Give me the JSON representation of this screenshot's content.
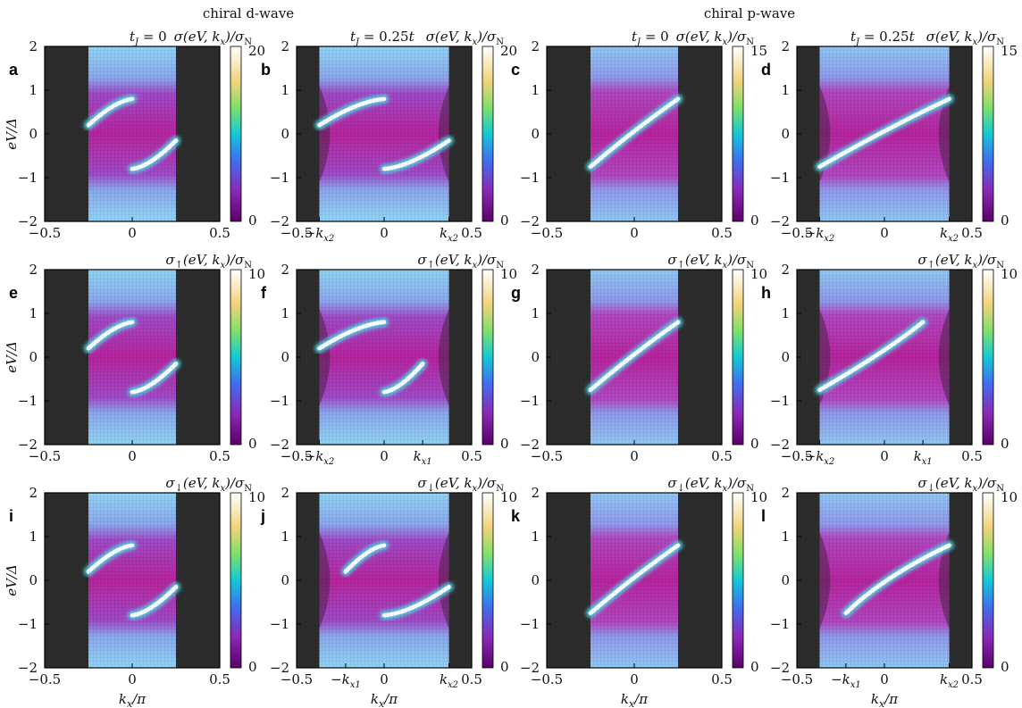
{
  "figure": {
    "header_d": "chiral d-wave",
    "header_p": "chiral p-wave"
  },
  "chart_data": [
    {
      "id": "a",
      "type": "heatmap",
      "panel_label": "a",
      "title_left": "t_J = 0",
      "title_right": "σ(eV, k_x)/σ_N",
      "cbar_max": 20,
      "ylabel": "eV/Δ",
      "xlim": [
        -0.5,
        0.5
      ],
      "ylim": [
        -2,
        2
      ],
      "x_ticks": [
        "-0.5",
        "0",
        "0.5"
      ],
      "y_ticks": [
        "-2",
        "-1",
        "0",
        "1",
        "2"
      ],
      "pairing": "d",
      "metal_edge": 0.25,
      "band_inner": 0.25,
      "band_outer": 0.25
    },
    {
      "id": "b",
      "type": "heatmap",
      "panel_label": "b",
      "title_left": "t_J = 0.25t",
      "title_right": "σ(eV, k_x)/σ_N",
      "cbar_max": 20,
      "xlim": [
        -0.5,
        0.5
      ],
      "ylim": [
        -2,
        2
      ],
      "x_ticks": [
        "-0.5",
        "−k_x2",
        "0",
        "k_x2",
        "0.5"
      ],
      "y_ticks": [
        "-2",
        "-1",
        "0",
        "1",
        "2"
      ],
      "pairing": "d",
      "metal_edge": 0.37,
      "band_inner": 0.37,
      "band_outer": 0.37
    },
    {
      "id": "c",
      "type": "heatmap",
      "panel_label": "c",
      "title_left": "t_J = 0",
      "title_right": "σ(eV, k_x)/σ_N",
      "cbar_max": 15,
      "xlim": [
        -0.5,
        0.5
      ],
      "ylim": [
        -2,
        2
      ],
      "x_ticks": [
        "-0.5",
        "0",
        "0.5"
      ],
      "y_ticks": [
        "-2",
        "-1",
        "0",
        "1",
        "2"
      ],
      "pairing": "p",
      "metal_edge": 0.25,
      "band_inner": 0.25,
      "band_outer": 0.25
    },
    {
      "id": "d",
      "type": "heatmap",
      "panel_label": "d",
      "title_left": "t_J = 0.25t",
      "title_right": "σ(eV, k_x)/σ_N",
      "cbar_max": 15,
      "xlim": [
        -0.5,
        0.5
      ],
      "ylim": [
        -2,
        2
      ],
      "x_ticks": [
        "-0.5",
        "−k_x2",
        "0",
        "k_x2",
        "0.5"
      ],
      "y_ticks": [
        "-2",
        "-1",
        "0",
        "1",
        "2"
      ],
      "pairing": "p",
      "metal_edge": 0.37,
      "band_inner": 0.37,
      "band_outer": 0.37
    },
    {
      "id": "e",
      "type": "heatmap",
      "panel_label": "e",
      "title_right": "σ↑(eV, k_x)/σ_N",
      "cbar_max": 10,
      "ylabel": "eV/Δ",
      "xlim": [
        -0.5,
        0.5
      ],
      "ylim": [
        -2,
        2
      ],
      "x_ticks": [
        "-0.5",
        "0",
        "0.5"
      ],
      "y_ticks": [
        "-2",
        "-1",
        "0",
        "1",
        "2"
      ],
      "pairing": "d",
      "metal_edge": 0.25,
      "band_inner": 0.25,
      "band_outer": 0.25
    },
    {
      "id": "f",
      "type": "heatmap",
      "panel_label": "f",
      "title_right": "σ↑(eV, k_x)/σ_N",
      "cbar_max": 10,
      "xlim": [
        -0.5,
        0.5
      ],
      "ylim": [
        -2,
        2
      ],
      "x_ticks": [
        "-0.5",
        "−k_x2",
        "0",
        "k_x1",
        "0.5"
      ],
      "y_ticks": [
        "-2",
        "-1",
        "0",
        "1",
        "2"
      ],
      "pairing": "d",
      "metal_edge": 0.37,
      "band_inner": 0.37,
      "band_outer": 0.22
    },
    {
      "id": "g",
      "type": "heatmap",
      "panel_label": "g",
      "title_right": "σ↑(eV, k_x)/σ_N",
      "cbar_max": 10,
      "xlim": [
        -0.5,
        0.5
      ],
      "ylim": [
        -2,
        2
      ],
      "x_ticks": [
        "-0.5",
        "0",
        "0.5"
      ],
      "y_ticks": [
        "-2",
        "-1",
        "0",
        "1",
        "2"
      ],
      "pairing": "p",
      "metal_edge": 0.25,
      "band_inner": 0.25,
      "band_outer": 0.25
    },
    {
      "id": "h",
      "type": "heatmap",
      "panel_label": "h",
      "title_right": "σ↑(eV, k_x)/σ_N",
      "cbar_max": 10,
      "xlim": [
        -0.5,
        0.5
      ],
      "ylim": [
        -2,
        2
      ],
      "x_ticks": [
        "-0.5",
        "−k_x2",
        "0",
        "k_x1",
        "0.5"
      ],
      "y_ticks": [
        "-2",
        "-1",
        "0",
        "1",
        "2"
      ],
      "pairing": "p",
      "metal_edge": 0.37,
      "band_inner": 0.37,
      "band_outer": 0.22
    },
    {
      "id": "i",
      "type": "heatmap",
      "panel_label": "i",
      "title_right": "σ↓(eV, k_x)/σ_N",
      "cbar_max": 10,
      "ylabel": "eV/Δ",
      "xlabel": "k_x/π",
      "xlim": [
        -0.5,
        0.5
      ],
      "ylim": [
        -2,
        2
      ],
      "x_ticks": [
        "-0.5",
        "0",
        "0.5"
      ],
      "y_ticks": [
        "-2",
        "-1",
        "0",
        "1",
        "2"
      ],
      "pairing": "d",
      "metal_edge": 0.25,
      "band_inner": 0.25,
      "band_outer": 0.25
    },
    {
      "id": "j",
      "type": "heatmap",
      "panel_label": "j",
      "title_right": "σ↓(eV, k_x)/σ_N",
      "cbar_max": 10,
      "xlabel": "k_x/π",
      "xlim": [
        -0.5,
        0.5
      ],
      "ylim": [
        -2,
        2
      ],
      "x_ticks": [
        "-0.5",
        "−k_x1",
        "0",
        "k_x2",
        "0.5"
      ],
      "y_ticks": [
        "-2",
        "-1",
        "0",
        "1",
        "2"
      ],
      "pairing": "d",
      "metal_edge": 0.37,
      "band_inner": 0.22,
      "band_outer": 0.37
    },
    {
      "id": "k",
      "type": "heatmap",
      "panel_label": "k",
      "title_right": "σ↓(eV, k_x)/σ_N",
      "cbar_max": 10,
      "xlabel": "k_x/π",
      "xlim": [
        -0.5,
        0.5
      ],
      "ylim": [
        -2,
        2
      ],
      "x_ticks": [
        "-0.5",
        "0",
        "0.5"
      ],
      "y_ticks": [
        "-2",
        "-1",
        "0",
        "1",
        "2"
      ],
      "pairing": "p",
      "metal_edge": 0.25,
      "band_inner": 0.25,
      "band_outer": 0.25
    },
    {
      "id": "l",
      "type": "heatmap",
      "panel_label": "l",
      "title_right": "σ↓(eV, k_x)/σ_N",
      "cbar_max": 10,
      "xlabel": "k_x/π",
      "xlim": [
        -0.5,
        0.5
      ],
      "ylim": [
        -2,
        2
      ],
      "x_ticks": [
        "-0.5",
        "−k_x1",
        "0",
        "k_x2",
        "0.5"
      ],
      "y_ticks": [
        "-2",
        "-1",
        "0",
        "1",
        "2"
      ],
      "pairing": "p",
      "metal_edge": 0.37,
      "band_inner": 0.22,
      "band_outer": 0.37
    }
  ]
}
